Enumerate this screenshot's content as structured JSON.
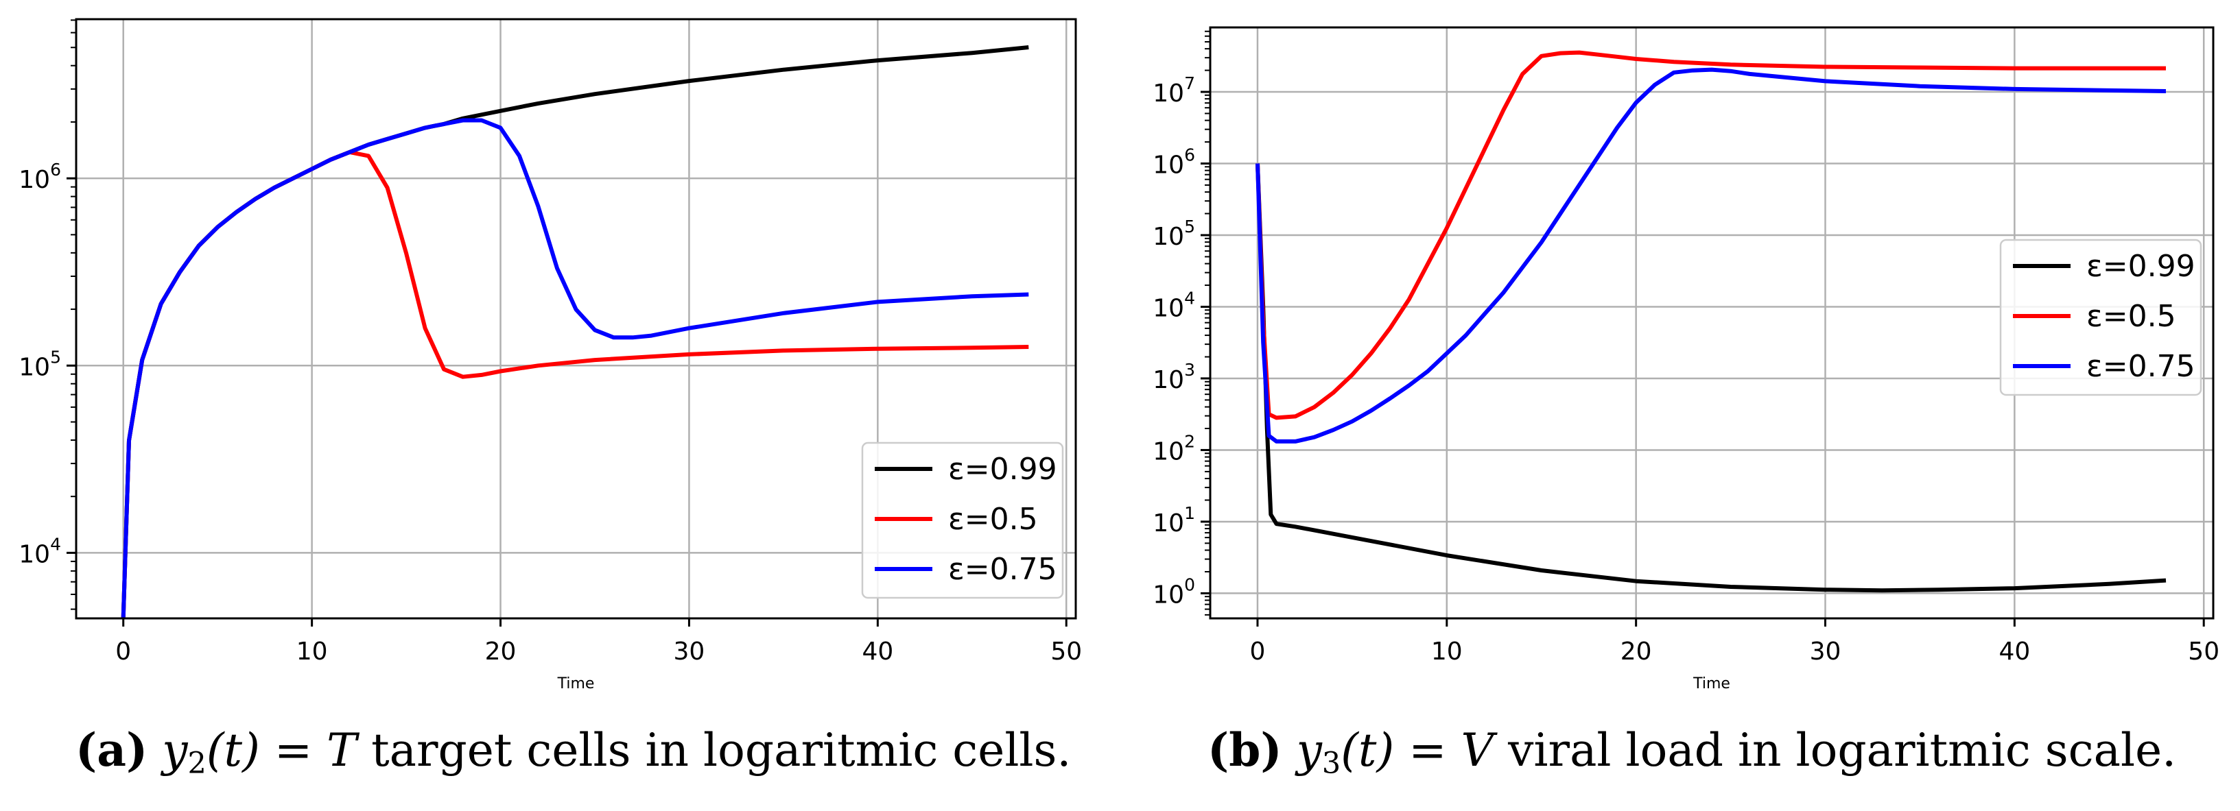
{
  "chart_data": [
    {
      "type": "line",
      "panel": "a",
      "yscale": "log",
      "xlabel": "Time",
      "ylabel": "",
      "xlim": [
        -2.5,
        50.5
      ],
      "ylim_log10": [
        3.65,
        6.85
      ],
      "xticks": [
        0,
        10,
        20,
        30,
        40,
        50
      ],
      "xtick_labels": [
        "0",
        "10",
        "20",
        "30",
        "40",
        "50"
      ],
      "yticks_exp": [
        4,
        5,
        6
      ],
      "ytick_base": "10",
      "ytick_exps": [
        "4",
        "5",
        "6"
      ],
      "grid": true,
      "legend_position": "lower-right",
      "series": [
        {
          "name": "ε=0.99",
          "color": "#000000",
          "x": [
            0,
            0.3,
            1,
            2,
            3,
            4,
            5,
            6,
            7,
            8,
            9,
            10,
            11,
            12,
            13,
            14,
            15,
            16,
            17,
            18,
            19,
            20,
            22,
            25,
            30,
            35,
            40,
            45,
            48
          ],
          "log10y": [
            3.65,
            4.6,
            5.03,
            5.33,
            5.5,
            5.64,
            5.74,
            5.82,
            5.89,
            5.95,
            6.0,
            6.05,
            6.1,
            6.14,
            6.18,
            6.21,
            6.24,
            6.27,
            6.29,
            6.32,
            6.34,
            6.36,
            6.4,
            6.45,
            6.52,
            6.58,
            6.63,
            6.67,
            6.7
          ]
        },
        {
          "name": "ε=0.5",
          "color": "#ff0000",
          "x": [
            0,
            0.3,
            1,
            2,
            3,
            4,
            5,
            6,
            7,
            8,
            9,
            10,
            11,
            12,
            13,
            14,
            15,
            16,
            17,
            18,
            19,
            20,
            22,
            25,
            30,
            35,
            40,
            45,
            48
          ],
          "log10y": [
            3.65,
            4.6,
            5.03,
            5.33,
            5.5,
            5.64,
            5.74,
            5.82,
            5.89,
            5.95,
            6.0,
            6.05,
            6.1,
            6.14,
            6.12,
            5.95,
            5.6,
            5.2,
            4.98,
            4.94,
            4.95,
            4.97,
            5.0,
            5.03,
            5.06,
            5.08,
            5.09,
            5.095,
            5.1
          ]
        },
        {
          "name": "ε=0.75",
          "color": "#0000ff",
          "x": [
            0,
            0.3,
            1,
            2,
            3,
            4,
            5,
            6,
            7,
            8,
            9,
            10,
            11,
            12,
            13,
            14,
            15,
            16,
            17,
            18,
            19,
            20,
            21,
            22,
            23,
            24,
            25,
            26,
            27,
            28,
            30,
            35,
            40,
            45,
            48
          ],
          "log10y": [
            3.65,
            4.6,
            5.03,
            5.33,
            5.5,
            5.64,
            5.74,
            5.82,
            5.89,
            5.95,
            6.0,
            6.05,
            6.1,
            6.14,
            6.18,
            6.21,
            6.24,
            6.27,
            6.29,
            6.31,
            6.31,
            6.27,
            6.12,
            5.85,
            5.52,
            5.3,
            5.19,
            5.15,
            5.15,
            5.16,
            5.2,
            5.28,
            5.34,
            5.37,
            5.38
          ]
        }
      ]
    },
    {
      "type": "line",
      "panel": "b",
      "yscale": "log",
      "xlabel": "Time",
      "ylabel": "",
      "xlim": [
        -2.5,
        50.5
      ],
      "ylim_log10": [
        -0.35,
        7.9
      ],
      "xticks": [
        0,
        10,
        20,
        30,
        40,
        50
      ],
      "xtick_labels": [
        "0",
        "10",
        "20",
        "30",
        "40",
        "50"
      ],
      "yticks_exp": [
        0,
        1,
        2,
        3,
        4,
        5,
        6,
        7
      ],
      "ytick_base": "10",
      "ytick_exps": [
        "0",
        "1",
        "2",
        "3",
        "4",
        "5",
        "6",
        "7"
      ],
      "grid": true,
      "legend_position": "center-right",
      "series": [
        {
          "name": "ε=0.99",
          "color": "#000000",
          "x": [
            0,
            0.3,
            0.5,
            0.7,
            1,
            2,
            5,
            10,
            15,
            20,
            25,
            30,
            33,
            36,
            40,
            45,
            48
          ],
          "log10y": [
            6.0,
            4.0,
            2.3,
            1.1,
            0.97,
            0.93,
            0.78,
            0.53,
            0.32,
            0.17,
            0.09,
            0.05,
            0.04,
            0.05,
            0.07,
            0.13,
            0.18
          ]
        },
        {
          "name": "ε=0.5",
          "color": "#ff0000",
          "x": [
            0,
            0.3,
            0.6,
            1,
            2,
            3,
            4,
            5,
            6,
            7,
            8,
            9,
            10,
            11,
            12,
            13,
            14,
            15,
            16,
            17,
            18,
            19,
            20,
            22,
            25,
            30,
            35,
            40,
            45,
            48
          ],
          "log10y": [
            6.0,
            3.8,
            2.5,
            2.45,
            2.47,
            2.6,
            2.8,
            3.05,
            3.35,
            3.7,
            4.1,
            4.6,
            5.1,
            5.65,
            6.2,
            6.75,
            7.25,
            7.5,
            7.54,
            7.55,
            7.52,
            7.49,
            7.46,
            7.42,
            7.38,
            7.35,
            7.34,
            7.33,
            7.33,
            7.33
          ]
        },
        {
          "name": "ε=0.75",
          "color": "#0000ff",
          "x": [
            0,
            0.3,
            0.6,
            1,
            2,
            3,
            4,
            5,
            6,
            7,
            8,
            9,
            10,
            11,
            12,
            13,
            14,
            15,
            16,
            17,
            18,
            19,
            20,
            21,
            22,
            23,
            24,
            25,
            26,
            28,
            30,
            35,
            40,
            45,
            48
          ],
          "log10y": [
            6.0,
            3.5,
            2.2,
            2.12,
            2.12,
            2.18,
            2.28,
            2.4,
            2.55,
            2.72,
            2.9,
            3.1,
            3.35,
            3.6,
            3.9,
            4.2,
            4.55,
            4.9,
            5.3,
            5.7,
            6.1,
            6.5,
            6.85,
            7.1,
            7.27,
            7.3,
            7.31,
            7.29,
            7.25,
            7.2,
            7.15,
            7.08,
            7.04,
            7.02,
            7.01
          ]
        }
      ]
    }
  ],
  "captions": [
    {
      "tag": "(a)",
      "var": "y",
      "sub": "2",
      "t": "(t)",
      "eq": " = ",
      "sym": "T",
      "rest": " target cells in logaritmic cells."
    },
    {
      "tag": "(b)",
      "var": "y",
      "sub": "3",
      "t": "(t)",
      "eq": " = ",
      "sym": "V",
      "rest": " viral load in logaritmic scale."
    }
  ]
}
